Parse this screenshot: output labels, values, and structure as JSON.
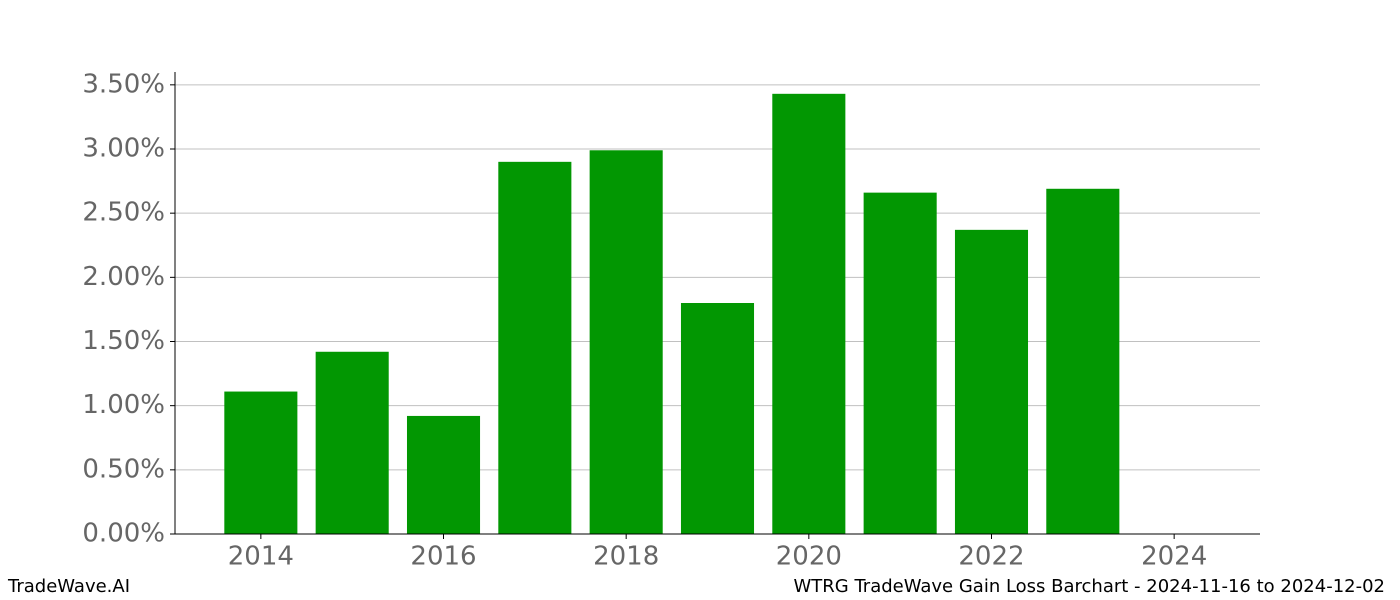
{
  "chart_data": {
    "type": "bar",
    "x": [
      2014,
      2015,
      2016,
      2017,
      2018,
      2019,
      2020,
      2021,
      2022,
      2023
    ],
    "values": [
      1.11,
      1.42,
      0.92,
      2.9,
      2.99,
      1.8,
      3.43,
      2.66,
      2.37,
      2.69
    ],
    "color": "#029702",
    "xlim": [
      2013.06,
      2024.94
    ],
    "xticks": [
      2014,
      2016,
      2018,
      2020,
      2022,
      2024
    ],
    "ylim": [
      0,
      3.6
    ],
    "yticks": [
      {
        "value": 0,
        "label": "0.00%"
      },
      {
        "value": 0.5,
        "label": "0.50%"
      },
      {
        "value": 1,
        "label": "1.00%"
      },
      {
        "value": 1.5,
        "label": "1.50%"
      },
      {
        "value": 2,
        "label": "2.00%"
      },
      {
        "value": 2.5,
        "label": "2.50%"
      },
      {
        "value": 3,
        "label": "3.00%"
      },
      {
        "value": 3.5,
        "label": "3.50%"
      }
    ],
    "grid": true,
    "footer_left": "TradeWave.AI",
    "footer_right": "WTRG TradeWave Gain Loss Barchart - 2024-11-16 to 2024-12-02"
  }
}
